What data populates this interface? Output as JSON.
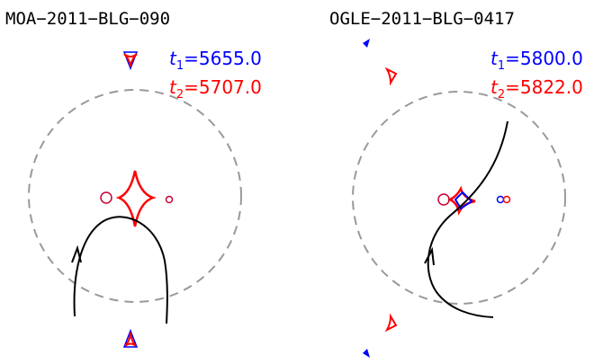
{
  "panels": [
    {
      "title": "MOA−2011−BLG−090",
      "t1": {
        "symbol": "t",
        "sub": "1",
        "text": "=5655.0"
      },
      "t2": {
        "symbol": "t",
        "sub": "2",
        "text": "=5707.0"
      }
    },
    {
      "title": "OGLE−2011−BLG−0417",
      "t1": {
        "symbol": "t",
        "sub": "1",
        "text": "=5800.0"
      },
      "t2": {
        "symbol": "t",
        "sub": "2",
        "text": "=5822.0"
      }
    }
  ]
}
